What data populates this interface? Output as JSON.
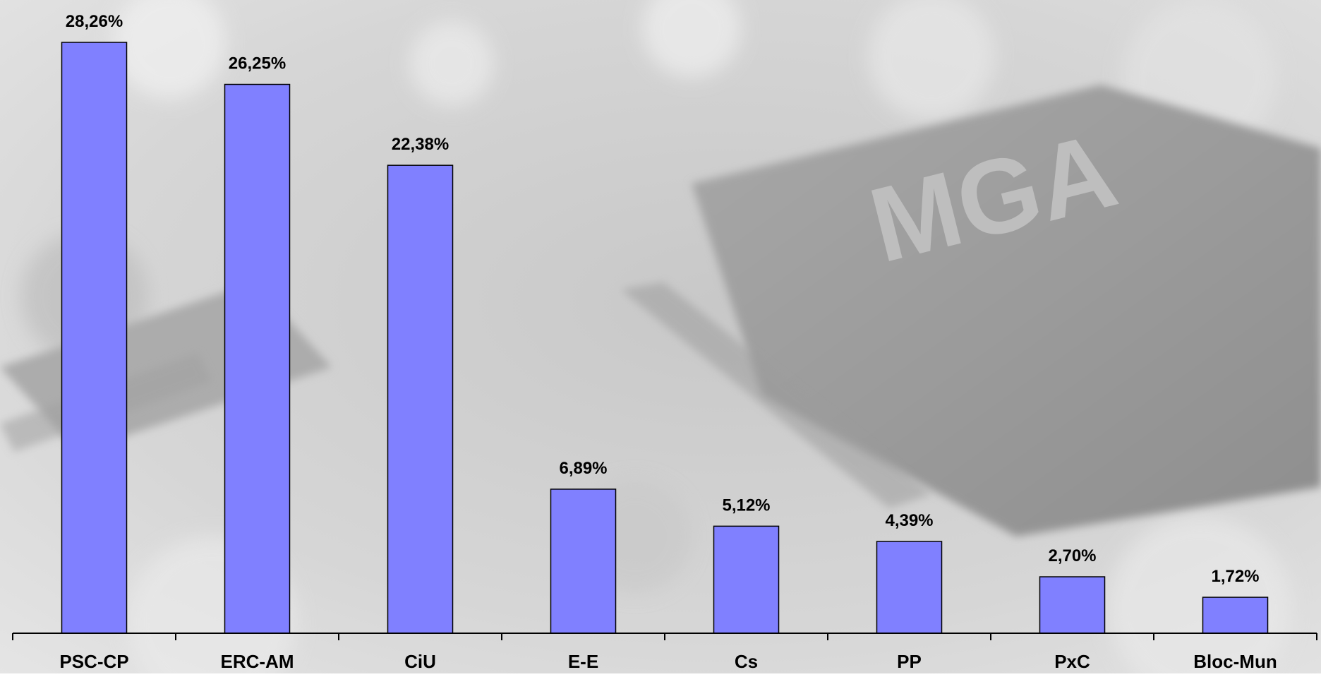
{
  "chart_data": {
    "type": "bar",
    "categories": [
      "PSC-CP",
      "ERC-AM",
      "CiU",
      "E-E",
      "Cs",
      "PP",
      "PxC",
      "Bloc-Mun"
    ],
    "values": [
      28.26,
      26.25,
      22.38,
      6.89,
      5.12,
      4.39,
      2.7,
      1.72
    ],
    "value_labels": [
      "28,26%",
      "26,25%",
      "22,38%",
      "6,89%",
      "5,12%",
      "4,39%",
      "2,70%",
      "1,72%"
    ],
    "title": "",
    "xlabel": "",
    "ylabel": "",
    "ylim": [
      0,
      28.26
    ],
    "grid": false,
    "legend": "none",
    "bar_color": "#8080FF",
    "bar_outline_color": "#000000",
    "axis_color": "#000000"
  },
  "background": {
    "description_free": true,
    "base_color": "#D9D9D9",
    "dark_color": "#9A9A9A",
    "light_color": "#EFEFEF",
    "logo_text": "MGA"
  }
}
